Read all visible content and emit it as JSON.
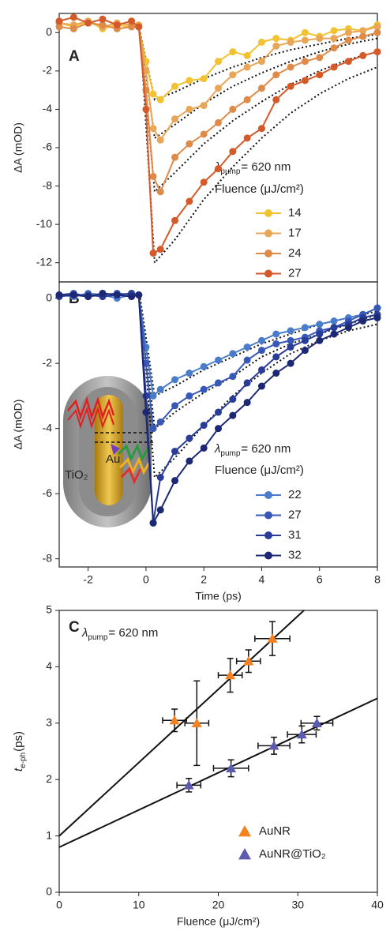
{
  "chart_data": [
    {
      "type": "line",
      "panel_label": "A",
      "ylabel": "ΔA (mOD)",
      "x": [
        -3,
        -2.5,
        -2,
        -1.5,
        -1,
        -0.5,
        -0.25,
        0,
        0.25,
        0.5,
        1,
        1.5,
        2,
        2.5,
        3,
        3.5,
        4,
        4.5,
        5,
        5.5,
        6,
        6.5,
        7,
        7.5,
        8
      ],
      "xlim": [
        -3,
        8
      ],
      "ylim": [
        -13,
        1
      ],
      "yticks": [
        0,
        -2,
        -4,
        -6,
        -8,
        -10,
        -12
      ],
      "annotation": {
        "symbol": "λ",
        "subscript": "pump",
        "text": "= 620 nm"
      },
      "legend_title": "Fluence (μJ/cm²)",
      "series": [
        {
          "name": "14",
          "color": "#f2c230",
          "values": [
            0.5,
            0.3,
            0.6,
            0.2,
            0.4,
            0.3,
            0.3,
            -1.5,
            -3.2,
            -3.5,
            -2.8,
            -2.5,
            -2.4,
            -1.5,
            -1.0,
            -1.2,
            -0.5,
            -0.3,
            -0.4,
            0,
            -0.2,
            0.1,
            0.2,
            0.1,
            0.4
          ]
        },
        {
          "name": "17",
          "color": "#e9a657",
          "values": [
            0.5,
            0.4,
            0.6,
            0.3,
            0.5,
            0.4,
            0.4,
            -2,
            -5.0,
            -5.6,
            -4.5,
            -4.0,
            -3.8,
            -2.9,
            -2.2,
            -1.8,
            -1.5,
            -0.7,
            -0.5,
            -0.4,
            -0.3,
            -0.3,
            0,
            0.1,
            0.3
          ]
        },
        {
          "name": "24",
          "color": "#de8a48",
          "values": [
            0.3,
            0.2,
            0.5,
            0.4,
            0.2,
            0.3,
            0.3,
            -3,
            -7.5,
            -8.3,
            -6.5,
            -5.8,
            -5.3,
            -4.7,
            -4.0,
            -3.5,
            -2.9,
            -2.2,
            -1.8,
            -1.5,
            -1.3,
            -0.8,
            -0.4,
            -0.2,
            0
          ]
        },
        {
          "name": "27",
          "color": "#d45a2a",
          "values": [
            0.6,
            0.8,
            0.5,
            0.7,
            0.4,
            0.6,
            0.3,
            -4,
            -11.5,
            -11.3,
            -9.8,
            -8.8,
            -7.8,
            -7.1,
            -6.2,
            -5.5,
            -5.0,
            -3.5,
            -2.8,
            -2.5,
            -2.2,
            -1.8,
            -1.5,
            -1.2,
            -1.0
          ]
        }
      ],
      "fit_x": [
        -0.2,
        0.3,
        1,
        2,
        3,
        4,
        5,
        6,
        7,
        8
      ],
      "fits": [
        {
          "values": [
            0,
            -3.5,
            -3.1,
            -2.4,
            -1.8,
            -1.3,
            -0.9,
            -0.6,
            -0.3,
            -0.1
          ]
        },
        {
          "values": [
            0,
            -5.5,
            -4.8,
            -3.7,
            -2.8,
            -2.1,
            -1.5,
            -1.0,
            -0.6,
            -0.3
          ]
        },
        {
          "values": [
            0,
            -8.3,
            -7.3,
            -5.8,
            -4.6,
            -3.6,
            -2.7,
            -2.0,
            -1.4,
            -1.0
          ]
        },
        {
          "values": [
            0,
            -12,
            -10.8,
            -8.7,
            -7,
            -5.5,
            -4.2,
            -3.2,
            -2.4,
            -1.8
          ]
        }
      ]
    },
    {
      "type": "line",
      "panel_label": "B",
      "ylabel": "ΔA (mOD)",
      "xlabel": "Time (ps)",
      "x": [
        -3,
        -2.5,
        -2,
        -1.5,
        -1,
        -0.5,
        -0.25,
        0,
        0.25,
        0.5,
        1,
        1.5,
        2,
        2.5,
        3,
        3.5,
        4,
        4.5,
        5,
        5.5,
        6,
        6.5,
        7,
        7.5,
        8
      ],
      "xlim": [
        -3,
        8
      ],
      "ylim": [
        -8.25,
        0.5
      ],
      "xticks": [
        -2,
        0,
        2,
        4,
        6,
        8
      ],
      "yticks": [
        0,
        -2,
        -4,
        -6,
        -8
      ],
      "annotation": {
        "symbol": "λ",
        "subscript": "pump",
        "text": "= 620 nm"
      },
      "legend_title": "Fluence (μJ/cm²)",
      "inset_labels": [
        "TiO₂",
        "Au"
      ],
      "series": [
        {
          "name": "22",
          "color": "#4a7ccc",
          "values": [
            0.1,
            0.05,
            0.15,
            0.1,
            0.0,
            0.1,
            0.1,
            -1.5,
            -3.0,
            -2.8,
            -2.5,
            -2.3,
            -2.1,
            -1.9,
            -1.7,
            -1.5,
            -1.3,
            -1.1,
            -1.0,
            -0.9,
            -0.8,
            -0.7,
            -0.6,
            -0.5,
            -0.3
          ]
        },
        {
          "name": "27",
          "color": "#3858b8",
          "values": [
            0.1,
            0.15,
            0.05,
            0.1,
            0.15,
            0.1,
            0.1,
            -2,
            -4,
            -3.8,
            -3.3,
            -3,
            -2.8,
            -2.6,
            -2.4,
            -1.9,
            -1.6,
            -1.4,
            -1.3,
            -1.2,
            -1.0,
            -0.9,
            -0.7,
            -0.5,
            -0.3
          ]
        },
        {
          "name": "31",
          "color": "#283c98",
          "values": [
            0.05,
            0.1,
            0.1,
            0.05,
            0.1,
            0.15,
            0.1,
            -3,
            -6.9,
            -5.5,
            -4.7,
            -4.3,
            -3.9,
            -3.5,
            -3.1,
            -2.6,
            -2.2,
            -1.8,
            -1.5,
            -1.3,
            -1.1,
            -0.9,
            -0.8,
            -0.6,
            -0.5
          ]
        },
        {
          "name": "32",
          "color": "#1c2874",
          "values": [
            0.1,
            0.1,
            0.05,
            0.15,
            0.1,
            0.05,
            0.1,
            -3.5,
            -6.9,
            -6.5,
            -5.6,
            -5.0,
            -4.6,
            -4.0,
            -3.6,
            -3.2,
            -2.7,
            -2.3,
            -2.0,
            -1.6,
            -1.3,
            -1.1,
            -0.9,
            -0.7,
            -0.6
          ]
        }
      ],
      "fit_x": [
        -0.2,
        0.3,
        1,
        2,
        3,
        4,
        5,
        6,
        7,
        8
      ],
      "fits": [
        {
          "values": [
            0,
            -3,
            -2.7,
            -2.2,
            -1.8,
            -1.4,
            -1.1,
            -0.8,
            -0.6,
            -0.4
          ]
        },
        {
          "values": [
            0,
            -4,
            -3.5,
            -2.9,
            -2.4,
            -1.8,
            -1.4,
            -1.1,
            -0.8,
            -0.5
          ]
        },
        {
          "values": [
            0,
            -5.5,
            -4.9,
            -3.9,
            -3.0,
            -2.3,
            -1.7,
            -1.3,
            -1.0,
            -0.8
          ]
        }
      ]
    },
    {
      "type": "scatter",
      "panel_label": "C",
      "ylabel": {
        "symbol": "t",
        "subscript": "e-ph",
        "text": "(ps)"
      },
      "xlabel": "Fluence (μJ/cm²)",
      "xlim": [
        0,
        40
      ],
      "ylim": [
        0,
        5
      ],
      "xticks": [
        0,
        10,
        20,
        30,
        40
      ],
      "yticks": [
        0,
        1,
        2,
        3,
        4,
        5
      ],
      "annotation": {
        "symbol": "λ",
        "subscript": "pump",
        "text": "= 620 nm"
      },
      "series": [
        {
          "name": "AuNR",
          "color": "#f58220",
          "x": [
            14.5,
            17.3,
            21.5,
            23.8,
            26.8
          ],
          "values": [
            3.05,
            3.0,
            3.85,
            4.1,
            4.5
          ],
          "xerr": [
            1.5,
            1.5,
            1.5,
            1.5,
            2.2
          ],
          "yerr": [
            0.2,
            0.75,
            0.3,
            0.2,
            0.3
          ]
        },
        {
          "name": "AuNR@TiO₂",
          "color": "#5b5bb0",
          "x": [
            16.3,
            21.6,
            27.0,
            30.5,
            32.4
          ],
          "values": [
            1.9,
            2.2,
            2.6,
            2.8,
            3.0
          ],
          "xerr": [
            1.5,
            2.2,
            2.0,
            1.8,
            2.0
          ],
          "yerr": [
            0.12,
            0.15,
            0.15,
            0.15,
            0.12
          ]
        }
      ],
      "fit_lines": [
        {
          "intercept": 1.0,
          "slope": 0.13
        },
        {
          "intercept": 0.8,
          "slope": 0.066
        }
      ]
    }
  ]
}
